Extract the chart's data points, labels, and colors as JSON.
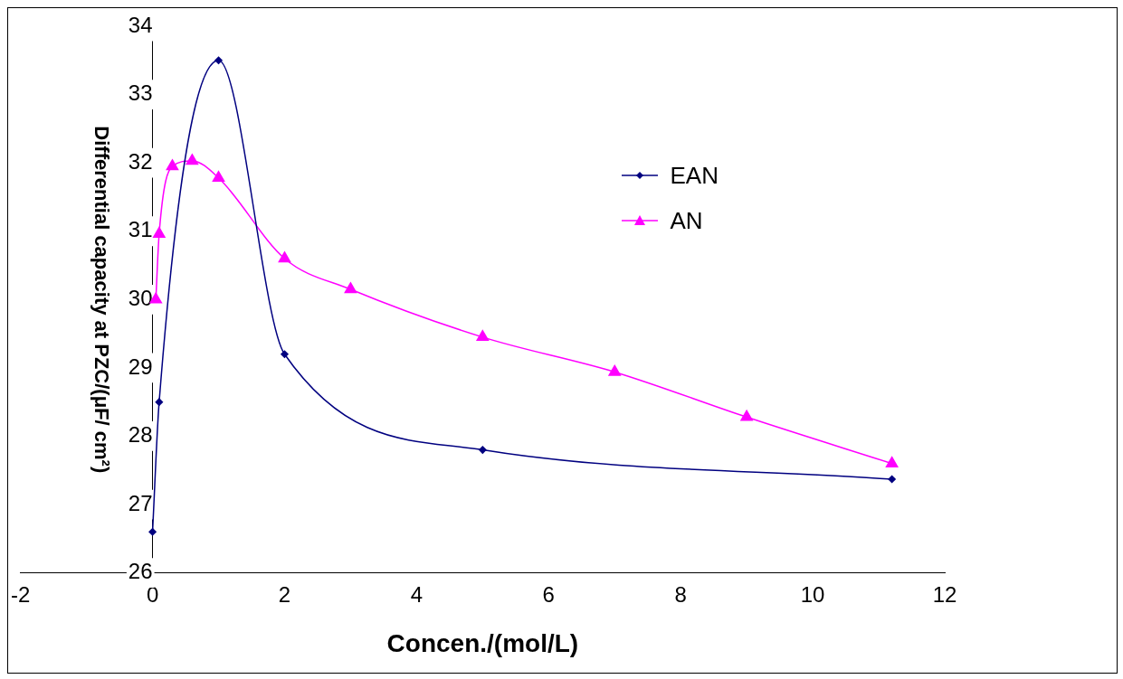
{
  "chart_data": {
    "type": "line",
    "xlabel": "Concen./(mol/L)",
    "ylabel": "Differential capacity at PZC/(μF/ cm²)",
    "xlim": [
      -2,
      12
    ],
    "xticks": [
      -2,
      0,
      2,
      4,
      6,
      8,
      10,
      12
    ],
    "ylim": [
      26,
      34
    ],
    "yticks": [
      26,
      27,
      28,
      29,
      30,
      31,
      32,
      33,
      34
    ],
    "grid": false,
    "legend": "top right",
    "series": [
      {
        "name": "EAN",
        "color": "#000080",
        "marker": "diamond",
        "x": [
          0,
          0.1,
          1,
          2,
          5,
          11.2
        ],
        "values": [
          26.6,
          28.5,
          33.5,
          29.2,
          27.8,
          27.37
        ]
      },
      {
        "name": "AN",
        "color": "#ff00ff",
        "marker": "triangle",
        "x": [
          0.05,
          0.1,
          0.3,
          0.6,
          1,
          2,
          3,
          5,
          7,
          9,
          11.2
        ],
        "values": [
          30.0,
          30.96,
          31.95,
          32.03,
          31.78,
          30.6,
          30.15,
          29.45,
          28.94,
          28.28,
          27.6
        ]
      }
    ]
  }
}
